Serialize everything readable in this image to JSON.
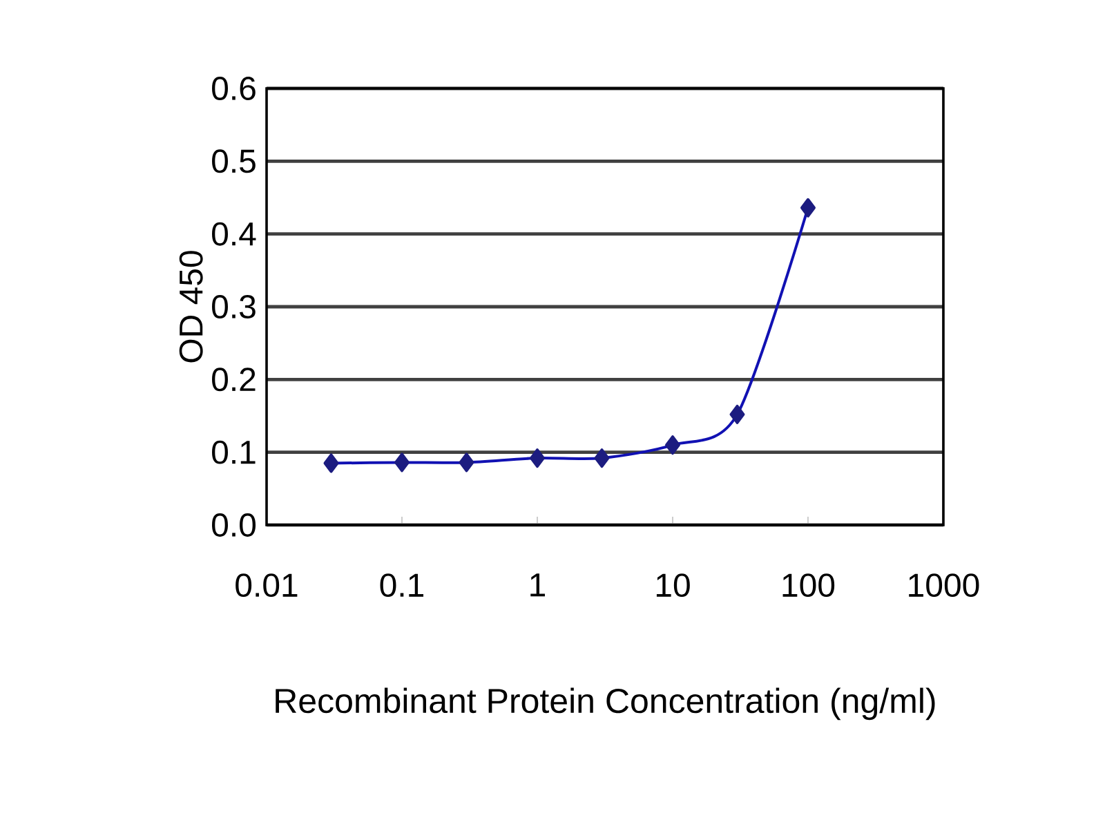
{
  "chart_data": {
    "type": "line",
    "xlabel": "Recombinant Protein Concentration (ng/ml)",
    "ylabel": "OD 450",
    "x": [
      0.03,
      0.1,
      0.3,
      1,
      3,
      10,
      30,
      100
    ],
    "series": [
      {
        "color": "#1c1c80",
        "values": [
          0.085,
          0.086,
          0.086,
          0.092,
          0.092,
          0.11,
          0.152,
          0.436
        ]
      }
    ],
    "log": "x",
    "xlim": [
      0.01,
      1000
    ],
    "ylim": [
      0,
      0.6
    ],
    "xticks": [
      0.01,
      0.1,
      1,
      10,
      100,
      1000
    ],
    "yticks": [
      {
        "value": 0,
        "label": "0.0"
      },
      0.1,
      0.2,
      0.3,
      0.4,
      0.5,
      0.6
    ],
    "grid": "y",
    "marker": "diamond",
    "line_style": "solid"
  }
}
